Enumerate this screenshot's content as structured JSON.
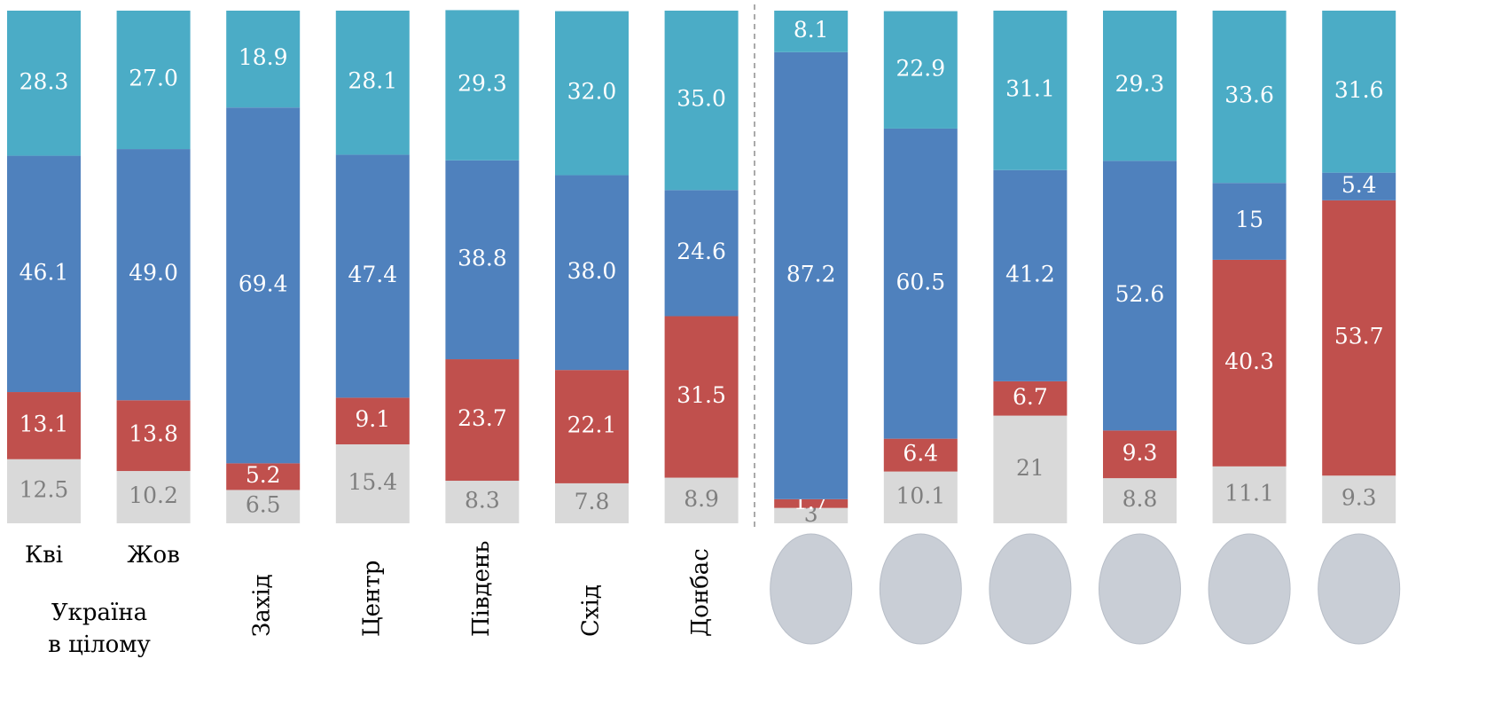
{
  "chart_data": {
    "type": "stacked_bar",
    "categories": [
      "Кві",
      "Жов",
      "Захід",
      "Центр",
      "Південь",
      "Схід",
      "Донбас",
      null,
      null,
      null,
      null,
      null,
      null
    ],
    "group_label": [
      "Україна",
      "в цілому"
    ],
    "ylim": [
      0,
      100
    ],
    "series": [
      {
        "color": "#d9d9d9",
        "values": [
          12.5,
          10.2,
          6.5,
          15.4,
          8.3,
          7.8,
          8.9,
          3,
          10.1,
          21,
          8.8,
          11.1,
          9.3
        ],
        "value_labels": [
          "12.5",
          "10.2",
          "6.5",
          "15.4",
          "8.3",
          "7.8",
          "8.9",
          "3",
          "10.1",
          "21",
          "8.8",
          "11.1",
          "9.3"
        ]
      },
      {
        "color": "#c0504d",
        "values": [
          13.1,
          13.8,
          5.2,
          9.1,
          23.7,
          22.1,
          31.5,
          1.7,
          6.4,
          6.7,
          9.3,
          40.3,
          53.7
        ],
        "value_labels": [
          "13.1",
          "13.8",
          "5.2",
          "9.1",
          "23.7",
          "22.1",
          "31.5",
          "1.7",
          "6.4",
          "6.7",
          "9.3",
          "40.3",
          "53.7"
        ]
      },
      {
        "color": "#4f81bd",
        "values": [
          46.1,
          49.0,
          69.4,
          47.4,
          38.8,
          38.0,
          24.6,
          87.2,
          60.5,
          41.2,
          52.6,
          15,
          5.4
        ],
        "value_labels": [
          "46.1",
          "49.0",
          "69.4",
          "47.4",
          "38.8",
          "38.0",
          "24.6",
          "87.2",
          "60.5",
          "41.2",
          "52.6",
          "15",
          "5.4"
        ]
      },
      {
        "color": "#4bacc6",
        "values": [
          28.3,
          27.0,
          18.9,
          28.1,
          29.3,
          32.0,
          35.0,
          8.1,
          22.9,
          31.1,
          29.3,
          33.6,
          31.6
        ],
        "value_labels": [
          "28.3",
          "27.0",
          "18.9",
          "28.1",
          "29.3",
          "32.0",
          "35.0",
          "8.1",
          "22.9",
          "31.1",
          "29.3",
          "33.6",
          "31.6"
        ]
      }
    ]
  }
}
